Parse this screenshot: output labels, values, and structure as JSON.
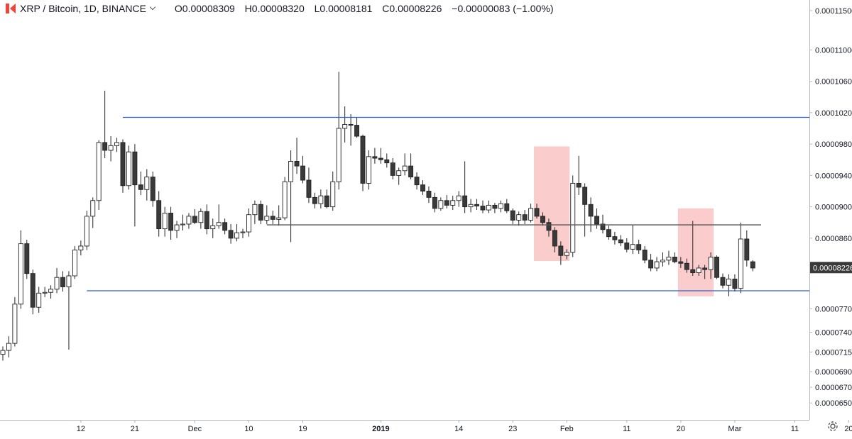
{
  "legend": {
    "title": "XRP / Bitcoin, 1D, BINANCE",
    "open": "O0.00008309",
    "high": "H0.00008320",
    "low": "L0.00008181",
    "close": "C0.00008226",
    "change": "−0.00000083 (−1.00%)"
  },
  "icons": {
    "settings": "gear-icon",
    "symbol": "broken-flag-icon",
    "dropdown": "chevron-down-icon"
  },
  "colors": {
    "up_body": "#ffffff",
    "down_body": "#3a3a3a",
    "wick": "#222222",
    "support_resistance": "#2f5fd0",
    "midline": "#555555",
    "highlight": "rgba(244,143,143,0.45)",
    "last_price_bg": "#3a3a3a",
    "symbol_logo": "#f44336"
  },
  "chart_data": {
    "type": "candlestick",
    "x_ticks": [
      "12",
      "21",
      "Dec",
      "10",
      "19",
      "2019",
      "14",
      "23",
      "Feb",
      "11",
      "20",
      "Mar",
      "11",
      "20"
    ],
    "y_ticks": [
      "0.00011500",
      "0.00011000",
      "0.00010600",
      "0.00010200",
      "0.00009800",
      "0.00009400",
      "0.00009000",
      "0.00008600",
      "0.00008200",
      "0.00007700",
      "0.00007400",
      "0.00007150",
      "0.00006900",
      "0.00006700",
      "0.00006500"
    ],
    "y_tick_values": [
      0.000115,
      0.00011,
      0.000106,
      0.000102,
      9.8e-05,
      9.4e-05,
      9e-05,
      8.6e-05,
      8.2e-05,
      7.7e-05,
      7.4e-05,
      7.15e-05,
      6.9e-05,
      6.7e-05,
      6.5e-05
    ],
    "ylim": [
      6.33e-05,
      0.000116
    ],
    "last_price": "0.00008226",
    "last_price_value": 8.226e-05,
    "horizontal_lines": [
      {
        "value": 0.0001014,
        "color": "blue",
        "from_date": "2018-11-19"
      },
      {
        "value": 8.77e-05,
        "color": "gray",
        "from_date": "2018-12-13"
      },
      {
        "value": 7.93e-05,
        "color": "blue",
        "from_date": "2018-11-13"
      }
    ],
    "highlight_boxes": [
      {
        "from_date": "2019-01-27",
        "to_date": "2019-02-01",
        "low": 8.31e-05,
        "high": 9.77e-05
      },
      {
        "from_date": "2019-02-20",
        "to_date": "2019-02-25",
        "low": 7.86e-05,
        "high": 8.98e-05
      }
    ],
    "x_date_ticks": [
      "2018-11-12",
      "2018-11-21",
      "2018-12-01",
      "2018-12-10",
      "2018-12-19",
      "2019-01-01",
      "2019-01-14",
      "2019-01-23",
      "2019-02-01",
      "2019-02-11",
      "2019-02-20",
      "2019-03-01",
      "2019-03-11",
      "2019-03-20"
    ],
    "candles": [
      {
        "d": "2018-10-30",
        "o": 7.12e-05,
        "h": 7.22e-05,
        "l": 7.04e-05,
        "c": 7.17e-05
      },
      {
        "d": "2018-10-31",
        "o": 7.17e-05,
        "h": 7.35e-05,
        "l": 7.08e-05,
        "c": 7.26e-05
      },
      {
        "d": "2018-11-01",
        "o": 7.26e-05,
        "h": 7.85e-05,
        "l": 7.22e-05,
        "c": 7.76e-05
      },
      {
        "d": "2018-11-02",
        "o": 7.76e-05,
        "h": 8.7e-05,
        "l": 7.7e-05,
        "c": 8.53e-05
      },
      {
        "d": "2018-11-03",
        "o": 8.53e-05,
        "h": 8.58e-05,
        "l": 8.08e-05,
        "c": 8.15e-05
      },
      {
        "d": "2018-11-04",
        "o": 8.15e-05,
        "h": 8.2e-05,
        "l": 7.63e-05,
        "c": 7.72e-05
      },
      {
        "d": "2018-11-05",
        "o": 7.72e-05,
        "h": 7.98e-05,
        "l": 7.65e-05,
        "c": 7.9e-05
      },
      {
        "d": "2018-11-06",
        "o": 7.9e-05,
        "h": 7.98e-05,
        "l": 7.85e-05,
        "c": 7.91e-05
      },
      {
        "d": "2018-11-07",
        "o": 7.91e-05,
        "h": 8e-05,
        "l": 7.83e-05,
        "c": 7.95e-05
      },
      {
        "d": "2018-11-08",
        "o": 7.95e-05,
        "h": 8.22e-05,
        "l": 7.9e-05,
        "c": 8.1e-05
      },
      {
        "d": "2018-11-09",
        "o": 8.1e-05,
        "h": 8.18e-05,
        "l": 7.92e-05,
        "c": 7.98e-05
      },
      {
        "d": "2018-11-10",
        "o": 7.98e-05,
        "h": 8.18e-05,
        "l": 7.18e-05,
        "c": 8.12e-05
      },
      {
        "d": "2018-11-11",
        "o": 8.12e-05,
        "h": 8.5e-05,
        "l": 8.08e-05,
        "c": 8.45e-05
      },
      {
        "d": "2018-11-12",
        "o": 8.45e-05,
        "h": 8.57e-05,
        "l": 8.38e-05,
        "c": 8.5e-05
      },
      {
        "d": "2018-11-13",
        "o": 8.5e-05,
        "h": 8.95e-05,
        "l": 8.45e-05,
        "c": 8.88e-05
      },
      {
        "d": "2018-11-14",
        "o": 8.88e-05,
        "h": 9.12e-05,
        "l": 8.73e-05,
        "c": 9.08e-05
      },
      {
        "d": "2018-11-15",
        "o": 9.08e-05,
        "h": 9.85e-05,
        "l": 8.96e-05,
        "c": 9.82e-05
      },
      {
        "d": "2018-11-16",
        "o": 9.82e-05,
        "h": 0.0001048,
        "l": 9.62e-05,
        "c": 9.72e-05
      },
      {
        "d": "2018-11-17",
        "o": 9.72e-05,
        "h": 9.9e-05,
        "l": 9.58e-05,
        "c": 9.78e-05
      },
      {
        "d": "2018-11-18",
        "o": 9.78e-05,
        "h": 9.88e-05,
        "l": 9.7e-05,
        "c": 9.82e-05
      },
      {
        "d": "2018-11-19",
        "o": 9.82e-05,
        "h": 9.86e-05,
        "l": 9.18e-05,
        "c": 9.27e-05
      },
      {
        "d": "2018-11-20",
        "o": 9.27e-05,
        "h": 9.78e-05,
        "l": 9.22e-05,
        "c": 9.7e-05
      },
      {
        "d": "2018-11-21",
        "o": 9.7e-05,
        "h": 9.8e-05,
        "l": 8.75e-05,
        "c": 9.28e-05
      },
      {
        "d": "2018-11-22",
        "o": 9.28e-05,
        "h": 9.45e-05,
        "l": 9.15e-05,
        "c": 9.22e-05
      },
      {
        "d": "2018-11-23",
        "o": 9.22e-05,
        "h": 9.48e-05,
        "l": 9.08e-05,
        "c": 9.38e-05
      },
      {
        "d": "2018-11-24",
        "o": 9.38e-05,
        "h": 9.45e-05,
        "l": 9e-05,
        "c": 9.08e-05
      },
      {
        "d": "2018-11-25",
        "o": 9.08e-05,
        "h": 9.2e-05,
        "l": 8.62e-05,
        "c": 8.72e-05
      },
      {
        "d": "2018-11-26",
        "o": 8.72e-05,
        "h": 9e-05,
        "l": 8.62e-05,
        "c": 8.92e-05
      },
      {
        "d": "2018-11-27",
        "o": 8.92e-05,
        "h": 9e-05,
        "l": 8.58e-05,
        "c": 8.7e-05
      },
      {
        "d": "2018-11-28",
        "o": 8.7e-05,
        "h": 8.82e-05,
        "l": 8.6e-05,
        "c": 8.77e-05
      },
      {
        "d": "2018-11-29",
        "o": 8.77e-05,
        "h": 8.9e-05,
        "l": 8.7e-05,
        "c": 8.78e-05
      },
      {
        "d": "2018-11-30",
        "o": 8.78e-05,
        "h": 8.92e-05,
        "l": 8.72e-05,
        "c": 8.88e-05
      },
      {
        "d": "2018-12-01",
        "o": 8.88e-05,
        "h": 8.97e-05,
        "l": 8.78e-05,
        "c": 8.8e-05
      },
      {
        "d": "2018-12-02",
        "o": 8.8e-05,
        "h": 8.98e-05,
        "l": 8.72e-05,
        "c": 8.94e-05
      },
      {
        "d": "2018-12-03",
        "o": 8.94e-05,
        "h": 9.03e-05,
        "l": 8.65e-05,
        "c": 8.72e-05
      },
      {
        "d": "2018-12-04",
        "o": 8.72e-05,
        "h": 8.85e-05,
        "l": 8.6e-05,
        "c": 8.76e-05
      },
      {
        "d": "2018-12-05",
        "o": 8.76e-05,
        "h": 9.03e-05,
        "l": 8.72e-05,
        "c": 8.8e-05
      },
      {
        "d": "2018-12-06",
        "o": 8.8e-05,
        "h": 8.85e-05,
        "l": 8.65e-05,
        "c": 8.7e-05
      },
      {
        "d": "2018-12-07",
        "o": 8.7e-05,
        "h": 8.78e-05,
        "l": 8.53e-05,
        "c": 8.6e-05
      },
      {
        "d": "2018-12-08",
        "o": 8.6e-05,
        "h": 8.78e-05,
        "l": 8.56e-05,
        "c": 8.67e-05
      },
      {
        "d": "2018-12-09",
        "o": 8.67e-05,
        "h": 8.72e-05,
        "l": 8.6e-05,
        "c": 8.68e-05
      },
      {
        "d": "2018-12-10",
        "o": 8.68e-05,
        "h": 8.98e-05,
        "l": 8.62e-05,
        "c": 8.9e-05
      },
      {
        "d": "2018-12-11",
        "o": 8.9e-05,
        "h": 9.08e-05,
        "l": 8.78e-05,
        "c": 9.03e-05
      },
      {
        "d": "2018-12-12",
        "o": 9.03e-05,
        "h": 9.08e-05,
        "l": 8.78e-05,
        "c": 8.83e-05
      },
      {
        "d": "2018-12-13",
        "o": 8.83e-05,
        "h": 9.02e-05,
        "l": 8.78e-05,
        "c": 8.88e-05
      },
      {
        "d": "2018-12-14",
        "o": 8.88e-05,
        "h": 8.95e-05,
        "l": 8.78e-05,
        "c": 8.84e-05
      },
      {
        "d": "2018-12-15",
        "o": 8.84e-05,
        "h": 9.02e-05,
        "l": 8.76e-05,
        "c": 8.86e-05
      },
      {
        "d": "2018-12-16",
        "o": 8.86e-05,
        "h": 9.38e-05,
        "l": 8.83e-05,
        "c": 9.32e-05
      },
      {
        "d": "2018-12-17",
        "o": 9.32e-05,
        "h": 9.72e-05,
        "l": 8.55e-05,
        "c": 9.58e-05
      },
      {
        "d": "2018-12-18",
        "o": 9.58e-05,
        "h": 9.88e-05,
        "l": 9.42e-05,
        "c": 9.52e-05
      },
      {
        "d": "2018-12-19",
        "o": 9.52e-05,
        "h": 9.65e-05,
        "l": 9.3e-05,
        "c": 9.34e-05
      },
      {
        "d": "2018-12-20",
        "o": 9.34e-05,
        "h": 9.5e-05,
        "l": 9.05e-05,
        "c": 9.12e-05
      },
      {
        "d": "2018-12-21",
        "o": 9.12e-05,
        "h": 9.18e-05,
        "l": 8.98e-05,
        "c": 9.04e-05
      },
      {
        "d": "2018-12-22",
        "o": 9.04e-05,
        "h": 9.22e-05,
        "l": 8.98e-05,
        "c": 9.14e-05
      },
      {
        "d": "2018-12-23",
        "o": 9.14e-05,
        "h": 9.22e-05,
        "l": 8.98e-05,
        "c": 9e-05
      },
      {
        "d": "2018-12-24",
        "o": 9e-05,
        "h": 9.45e-05,
        "l": 8.95e-05,
        "c": 9.32e-05
      },
      {
        "d": "2018-12-25",
        "o": 9.32e-05,
        "h": 0.0001072,
        "l": 9.22e-05,
        "c": 0.0001
      },
      {
        "d": "2018-12-26",
        "o": 0.0001,
        "h": 0.0001028,
        "l": 9.82e-05,
        "c": 0.0001005
      },
      {
        "d": "2018-12-27",
        "o": 0.0001005,
        "h": 0.0001018,
        "l": 9.78e-05,
        "c": 0.0001004
      },
      {
        "d": "2018-12-28",
        "o": 0.0001004,
        "h": 0.0001014,
        "l": 9.88e-05,
        "c": 9.9e-05
      },
      {
        "d": "2018-12-29",
        "o": 9.9e-05,
        "h": 9.92e-05,
        "l": 9.2e-05,
        "c": 9.3e-05
      },
      {
        "d": "2018-12-30",
        "o": 9.3e-05,
        "h": 9.72e-05,
        "l": 9.22e-05,
        "c": 9.64e-05
      },
      {
        "d": "2018-12-31",
        "o": 9.64e-05,
        "h": 9.75e-05,
        "l": 9.55e-05,
        "c": 9.62e-05
      },
      {
        "d": "2019-01-01",
        "o": 9.62e-05,
        "h": 9.75e-05,
        "l": 9.55e-05,
        "c": 9.6e-05
      },
      {
        "d": "2019-01-02",
        "o": 9.6e-05,
        "h": 9.68e-05,
        "l": 9.5e-05,
        "c": 9.56e-05
      },
      {
        "d": "2019-01-03",
        "o": 9.56e-05,
        "h": 9.62e-05,
        "l": 9.35e-05,
        "c": 9.4e-05
      },
      {
        "d": "2019-01-04",
        "o": 9.4e-05,
        "h": 9.5e-05,
        "l": 9.28e-05,
        "c": 9.46e-05
      },
      {
        "d": "2019-01-05",
        "o": 9.46e-05,
        "h": 9.68e-05,
        "l": 9.4e-05,
        "c": 9.52e-05
      },
      {
        "d": "2019-01-06",
        "o": 9.52e-05,
        "h": 9.68e-05,
        "l": 9.35e-05,
        "c": 9.38e-05
      },
      {
        "d": "2019-01-07",
        "o": 9.38e-05,
        "h": 9.44e-05,
        "l": 9.22e-05,
        "c": 9.28e-05
      },
      {
        "d": "2019-01-08",
        "o": 9.28e-05,
        "h": 9.34e-05,
        "l": 9.15e-05,
        "c": 9.2e-05
      },
      {
        "d": "2019-01-09",
        "o": 9.2e-05,
        "h": 9.26e-05,
        "l": 9.05e-05,
        "c": 9.12e-05
      },
      {
        "d": "2019-01-10",
        "o": 9.12e-05,
        "h": 9.18e-05,
        "l": 8.93e-05,
        "c": 8.98e-05
      },
      {
        "d": "2019-01-11",
        "o": 8.98e-05,
        "h": 9.12e-05,
        "l": 8.95e-05,
        "c": 9.08e-05
      },
      {
        "d": "2019-01-12",
        "o": 9.08e-05,
        "h": 9.15e-05,
        "l": 8.98e-05,
        "c": 9.02e-05
      },
      {
        "d": "2019-01-13",
        "o": 9.02e-05,
        "h": 9.14e-05,
        "l": 8.96e-05,
        "c": 9.08e-05
      },
      {
        "d": "2019-01-14",
        "o": 9.08e-05,
        "h": 9.2e-05,
        "l": 9e-05,
        "c": 9.14e-05
      },
      {
        "d": "2019-01-15",
        "o": 9.14e-05,
        "h": 9.58e-05,
        "l": 8.92e-05,
        "c": 9e-05
      },
      {
        "d": "2019-01-16",
        "o": 9e-05,
        "h": 9.1e-05,
        "l": 8.93e-05,
        "c": 9.03e-05
      },
      {
        "d": "2019-01-17",
        "o": 9.03e-05,
        "h": 9.1e-05,
        "l": 8.96e-05,
        "c": 9.01e-05
      },
      {
        "d": "2019-01-18",
        "o": 9.01e-05,
        "h": 9.08e-05,
        "l": 8.92e-05,
        "c": 8.96e-05
      },
      {
        "d": "2019-01-19",
        "o": 8.96e-05,
        "h": 9.08e-05,
        "l": 8.92e-05,
        "c": 9.02e-05
      },
      {
        "d": "2019-01-20",
        "o": 9.02e-05,
        "h": 9.05e-05,
        "l": 8.92e-05,
        "c": 8.98e-05
      },
      {
        "d": "2019-01-21",
        "o": 8.98e-05,
        "h": 9.08e-05,
        "l": 8.93e-05,
        "c": 9.04e-05
      },
      {
        "d": "2019-01-22",
        "o": 9.04e-05,
        "h": 9.1e-05,
        "l": 8.92e-05,
        "c": 8.95e-05
      },
      {
        "d": "2019-01-23",
        "o": 8.95e-05,
        "h": 8.98e-05,
        "l": 8.78e-05,
        "c": 8.83e-05
      },
      {
        "d": "2019-01-24",
        "o": 8.83e-05,
        "h": 8.94e-05,
        "l": 8.76e-05,
        "c": 8.9e-05
      },
      {
        "d": "2019-01-25",
        "o": 8.9e-05,
        "h": 8.96e-05,
        "l": 8.78e-05,
        "c": 8.83e-05
      },
      {
        "d": "2019-01-26",
        "o": 8.83e-05,
        "h": 9.04e-05,
        "l": 8.8e-05,
        "c": 8.98e-05
      },
      {
        "d": "2019-01-27",
        "o": 8.98e-05,
        "h": 9.04e-05,
        "l": 8.85e-05,
        "c": 8.88e-05
      },
      {
        "d": "2019-01-28",
        "o": 8.88e-05,
        "h": 8.93e-05,
        "l": 8.76e-05,
        "c": 8.8e-05
      },
      {
        "d": "2019-01-29",
        "o": 8.8e-05,
        "h": 8.85e-05,
        "l": 8.62e-05,
        "c": 8.7e-05
      },
      {
        "d": "2019-01-30",
        "o": 8.7e-05,
        "h": 8.74e-05,
        "l": 8.42e-05,
        "c": 8.5e-05
      },
      {
        "d": "2019-01-31",
        "o": 8.5e-05,
        "h": 8.56e-05,
        "l": 8.26e-05,
        "c": 8.38e-05
      },
      {
        "d": "2019-02-01",
        "o": 8.38e-05,
        "h": 8.46e-05,
        "l": 8.33e-05,
        "c": 8.42e-05
      },
      {
        "d": "2019-02-02",
        "o": 8.42e-05,
        "h": 9.4e-05,
        "l": 8.36e-05,
        "c": 9.3e-05
      },
      {
        "d": "2019-02-03",
        "o": 9.3e-05,
        "h": 9.65e-05,
        "l": 9.15e-05,
        "c": 9.25e-05
      },
      {
        "d": "2019-02-04",
        "o": 9.25e-05,
        "h": 9.3e-05,
        "l": 8.62e-05,
        "c": 9.03e-05
      },
      {
        "d": "2019-02-05",
        "o": 9.03e-05,
        "h": 9.12e-05,
        "l": 8.68e-05,
        "c": 8.88e-05
      },
      {
        "d": "2019-02-06",
        "o": 8.88e-05,
        "h": 8.98e-05,
        "l": 8.72e-05,
        "c": 8.78e-05
      },
      {
        "d": "2019-02-07",
        "o": 8.78e-05,
        "h": 8.9e-05,
        "l": 8.66e-05,
        "c": 8.71e-05
      },
      {
        "d": "2019-02-08",
        "o": 8.71e-05,
        "h": 8.76e-05,
        "l": 8.58e-05,
        "c": 8.62e-05
      },
      {
        "d": "2019-02-09",
        "o": 8.62e-05,
        "h": 8.68e-05,
        "l": 8.52e-05,
        "c": 8.58e-05
      },
      {
        "d": "2019-02-10",
        "o": 8.58e-05,
        "h": 8.64e-05,
        "l": 8.5e-05,
        "c": 8.54e-05
      },
      {
        "d": "2019-02-11",
        "o": 8.54e-05,
        "h": 8.6e-05,
        "l": 8.42e-05,
        "c": 8.46e-05
      },
      {
        "d": "2019-02-12",
        "o": 8.46e-05,
        "h": 8.77e-05,
        "l": 8.4e-05,
        "c": 8.52e-05
      },
      {
        "d": "2019-02-13",
        "o": 8.52e-05,
        "h": 8.58e-05,
        "l": 8.4e-05,
        "c": 8.45e-05
      },
      {
        "d": "2019-02-14",
        "o": 8.45e-05,
        "h": 8.5e-05,
        "l": 8.28e-05,
        "c": 8.32e-05
      },
      {
        "d": "2019-02-15",
        "o": 8.32e-05,
        "h": 8.4e-05,
        "l": 8.18e-05,
        "c": 8.22e-05
      },
      {
        "d": "2019-02-16",
        "o": 8.22e-05,
        "h": 8.36e-05,
        "l": 8.18e-05,
        "c": 8.3e-05
      },
      {
        "d": "2019-02-17",
        "o": 8.3e-05,
        "h": 8.42e-05,
        "l": 8.24e-05,
        "c": 8.32e-05
      },
      {
        "d": "2019-02-18",
        "o": 8.32e-05,
        "h": 8.44e-05,
        "l": 8.26e-05,
        "c": 8.36e-05
      },
      {
        "d": "2019-02-19",
        "o": 8.36e-05,
        "h": 8.42e-05,
        "l": 8.28e-05,
        "c": 8.3e-05
      },
      {
        "d": "2019-02-20",
        "o": 8.3e-05,
        "h": 8.36e-05,
        "l": 8.22e-05,
        "c": 8.28e-05
      },
      {
        "d": "2019-02-21",
        "o": 8.28e-05,
        "h": 8.34e-05,
        "l": 8.16e-05,
        "c": 8.2e-05
      },
      {
        "d": "2019-02-22",
        "o": 8.2e-05,
        "h": 8.82e-05,
        "l": 8.12e-05,
        "c": 8.16e-05
      },
      {
        "d": "2019-02-23",
        "o": 8.16e-05,
        "h": 8.26e-05,
        "l": 8.12e-05,
        "c": 8.22e-05
      },
      {
        "d": "2019-02-24",
        "o": 8.22e-05,
        "h": 8.26e-05,
        "l": 8.08e-05,
        "c": 8.2e-05
      },
      {
        "d": "2019-02-25",
        "o": 8.2e-05,
        "h": 8.42e-05,
        "l": 8.08e-05,
        "c": 8.36e-05
      },
      {
        "d": "2019-02-26",
        "o": 8.36e-05,
        "h": 8.38e-05,
        "l": 8.08e-05,
        "c": 8.1e-05
      },
      {
        "d": "2019-02-27",
        "o": 8.1e-05,
        "h": 8.15e-05,
        "l": 7.96e-05,
        "c": 8e-05
      },
      {
        "d": "2019-02-28",
        "o": 8e-05,
        "h": 8.14e-05,
        "l": 7.86e-05,
        "c": 8.08e-05
      },
      {
        "d": "2019-03-01",
        "o": 8.08e-05,
        "h": 8.14e-05,
        "l": 7.92e-05,
        "c": 7.96e-05
      },
      {
        "d": "2019-03-02",
        "o": 7.96e-05,
        "h": 8.8e-05,
        "l": 7.9e-05,
        "c": 8.59e-05
      },
      {
        "d": "2019-03-03",
        "o": 8.59e-05,
        "h": 8.7e-05,
        "l": 8.24e-05,
        "c": 8.32e-05
      },
      {
        "d": "2019-03-04",
        "o": 8.3e-05,
        "h": 8.32e-05,
        "l": 8.18e-05,
        "c": 8.22e-05
      }
    ]
  }
}
